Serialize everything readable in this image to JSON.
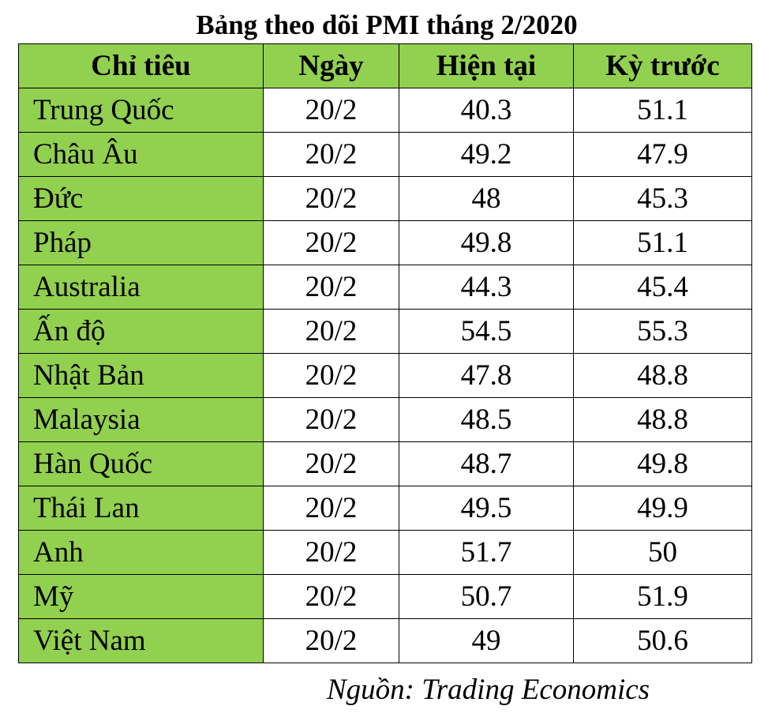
{
  "title": "Bảng theo dõi PMI tháng 2/2020",
  "table": {
    "headers": [
      "Chỉ tiêu",
      "Ngày",
      "Hiện tại",
      "Kỳ trước"
    ],
    "rows": [
      {
        "name": "Trung Quốc",
        "date": "20/2",
        "current": "40.3",
        "previous": "51.1"
      },
      {
        "name": "Châu Âu",
        "date": "20/2",
        "current": "49.2",
        "previous": "47.9"
      },
      {
        "name": "Đức",
        "date": "20/2",
        "current": "48",
        "previous": "45.3"
      },
      {
        "name": "Pháp",
        "date": "20/2",
        "current": "49.8",
        "previous": "51.1"
      },
      {
        "name": "Australia",
        "date": "20/2",
        "current": "44.3",
        "previous": "45.4"
      },
      {
        "name": "Ấn độ",
        "date": "20/2",
        "current": "54.5",
        "previous": "55.3"
      },
      {
        "name": "Nhật Bản",
        "date": "20/2",
        "current": "47.8",
        "previous": "48.8"
      },
      {
        "name": "Malaysia",
        "date": "20/2",
        "current": "48.5",
        "previous": "48.8"
      },
      {
        "name": "Hàn Quốc",
        "date": "20/2",
        "current": "48.7",
        "previous": "49.8"
      },
      {
        "name": "Thái Lan",
        "date": "20/2",
        "current": "49.5",
        "previous": "49.9"
      },
      {
        "name": "Anh",
        "date": "20/2",
        "current": "51.7",
        "previous": "50"
      },
      {
        "name": "Mỹ",
        "date": "20/2",
        "current": "50.7",
        "previous": "51.9"
      },
      {
        "name": "Việt Nam",
        "date": "20/2",
        "current": "49",
        "previous": "50.6"
      }
    ]
  },
  "source": "Nguồn: Trading Economics",
  "colors": {
    "header_background": "#92d050",
    "label_column_background": "#92d050",
    "border": "#000000"
  }
}
